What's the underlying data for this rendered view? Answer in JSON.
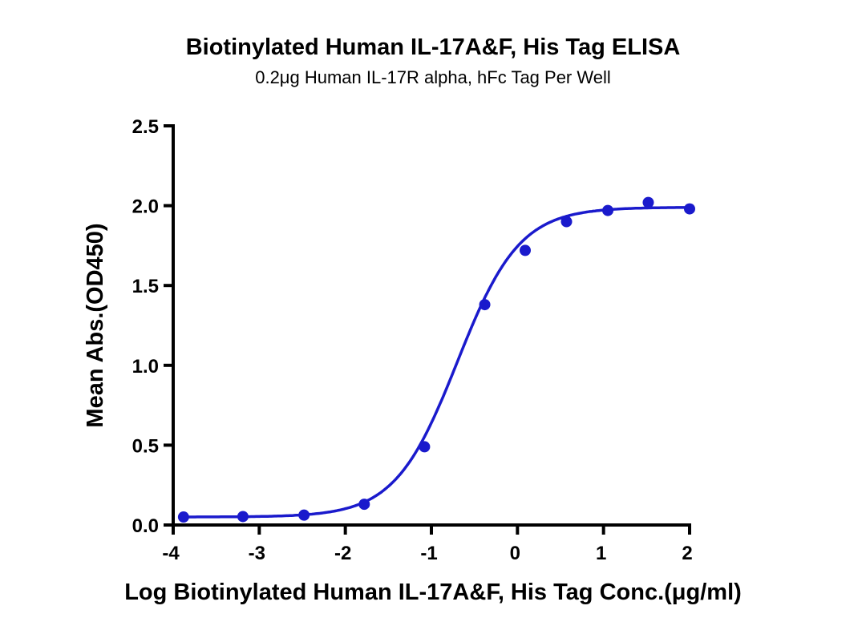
{
  "chart_data": {
    "type": "line",
    "title": "Biotinylated Human IL-17A&F, His Tag ELISA",
    "subtitle": "0.2μg Human IL-17R alpha, hFc Tag Per Well",
    "xlabel": "Log Biotinylated Human IL-17A&F, His Tag Conc.(μg/ml)",
    "ylabel": "Mean Abs.(OD450)",
    "xlim": [
      -4,
      2
    ],
    "ylim": [
      0,
      2.5
    ],
    "xticks": [
      "-4",
      "-3",
      "-2",
      "-1",
      "0",
      "1",
      "2"
    ],
    "yticks": [
      "0.0",
      "0.5",
      "1.0",
      "1.5",
      "2.0",
      "2.5"
    ],
    "grid": false,
    "color": "#1a1acc",
    "series": [
      {
        "name": "Data points",
        "x": [
          -3.88,
          -3.19,
          -2.48,
          -1.78,
          -1.08,
          -0.38,
          0.09,
          0.57,
          1.05,
          1.52,
          2.0
        ],
        "y": [
          0.05,
          0.053,
          0.062,
          0.13,
          0.49,
          1.38,
          1.72,
          1.9,
          1.97,
          2.02,
          1.98
        ]
      }
    ],
    "fit": {
      "model": "4PL",
      "bottom": 0.05,
      "top": 1.99,
      "logEC50": -0.7,
      "hill": 1.2
    }
  }
}
